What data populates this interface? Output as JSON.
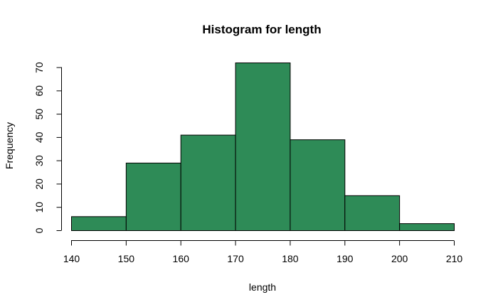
{
  "chart_data": {
    "type": "bar",
    "title": "Histogram for length",
    "xlabel": "length",
    "ylabel": "Frequency",
    "bin_edges": [
      140,
      150,
      160,
      170,
      180,
      190,
      200,
      210
    ],
    "values": [
      6,
      29,
      41,
      72,
      39,
      15,
      3
    ],
    "xlim": [
      140,
      210
    ],
    "ylim": [
      0,
      72
    ],
    "x_ticks": [
      140,
      150,
      160,
      170,
      180,
      190,
      200,
      210
    ],
    "y_ticks": [
      0,
      10,
      20,
      30,
      40,
      50,
      60,
      70
    ],
    "bar_color": "#2e8b57",
    "grid": false
  }
}
